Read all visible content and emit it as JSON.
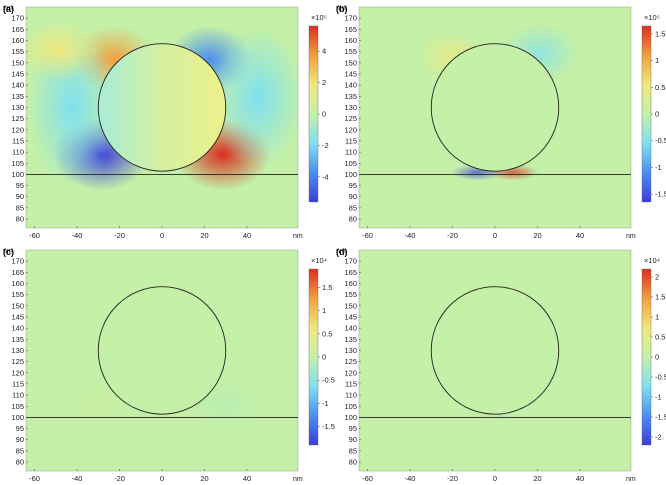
{
  "panels": [
    {
      "id": "a",
      "label": "(a)",
      "colorbar_unit": "×10⁵",
      "colorbar_ticks": [
        "4",
        "2",
        "0",
        "-2",
        "-4"
      ],
      "colorbar_tick_values": [
        4,
        2,
        0,
        -2,
        -4
      ],
      "colorbar_range": [
        -5.6,
        5.6
      ],
      "field_strength": 1.0,
      "field_type": "wide"
    },
    {
      "id": "b",
      "label": "(b)",
      "colorbar_unit": "×10⁵",
      "colorbar_ticks": [
        "1.5",
        "1",
        "0.5",
        "0",
        "-0.5",
        "-1",
        "-1.5"
      ],
      "colorbar_tick_values": [
        1.5,
        1,
        0.5,
        0,
        -0.5,
        -1,
        -1.5
      ],
      "colorbar_range": [
        -1.65,
        1.65
      ],
      "field_strength": 0.7,
      "field_type": "gap"
    },
    {
      "id": "c",
      "label": "(c)",
      "colorbar_unit": "×10⁴",
      "colorbar_ticks": [
        "1.5",
        "1",
        "0.5",
        "0",
        "-0.5",
        "-1",
        "-1.5"
      ],
      "colorbar_tick_values": [
        1.5,
        1,
        0.5,
        0,
        -0.5,
        -1,
        -1.5
      ],
      "colorbar_range": [
        -1.9,
        1.9
      ],
      "field_strength": 0.12,
      "field_type": "weak"
    },
    {
      "id": "d",
      "label": "(d)",
      "colorbar_unit": "×10⁴",
      "colorbar_ticks": [
        "2",
        "1.5",
        "1",
        "0.5",
        "0",
        "-0.5",
        "-1",
        "-1.5",
        "-2"
      ],
      "colorbar_tick_values": [
        2,
        1.5,
        1,
        0.5,
        0,
        -0.5,
        -1,
        -1.5,
        -2
      ],
      "colorbar_range": [
        -2.2,
        2.2
      ],
      "field_strength": 0.08,
      "field_type": "tiny"
    }
  ],
  "axes": {
    "x_unit": "nm",
    "y_unit": "nm",
    "x_ticks": [
      "-60",
      "-40",
      "-20",
      "0",
      "20",
      "40"
    ],
    "x_tick_values": [
      -60,
      -40,
      -20,
      0,
      20,
      40
    ],
    "y_ticks": [
      "170",
      "165",
      "160",
      "155",
      "150",
      "145",
      "140",
      "135",
      "130",
      "125",
      "120",
      "115",
      "110",
      "105",
      "100",
      "95",
      "90",
      "85",
      "80"
    ],
    "y_tick_values": [
      170,
      165,
      160,
      155,
      150,
      145,
      140,
      135,
      130,
      125,
      120,
      115,
      110,
      105,
      100,
      95,
      90,
      85,
      80
    ],
    "x_range": [
      -64,
      64
    ],
    "y_range": [
      76,
      175
    ]
  },
  "geometry": {
    "sphere_center_nm": [
      0,
      130
    ],
    "sphere_radius_nm": 30,
    "substrate_surface_nm": 100
  },
  "colors": {
    "background_field": "#c4f0a8",
    "outline": "#222222",
    "colormap": [
      "#3c3cd8",
      "#4a8ef0",
      "#7fe0f0",
      "#c4f0a8",
      "#f0e87c",
      "#f0a040",
      "#d83020"
    ]
  }
}
